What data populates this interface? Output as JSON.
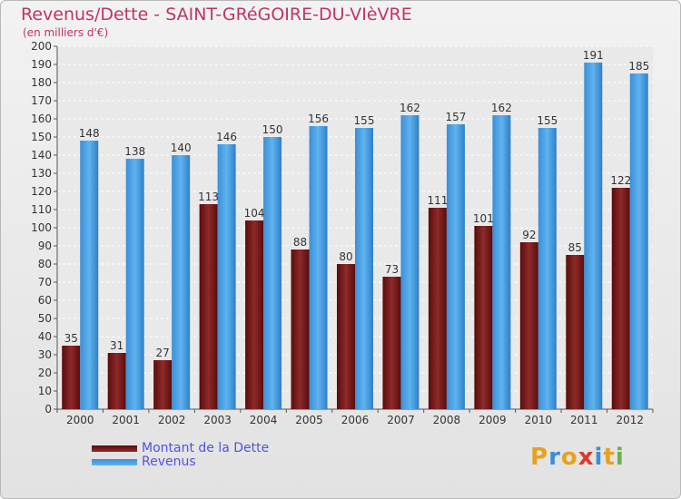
{
  "title": "Revenus/Dette - SAINT-GRéGOIRE-DU-VIèVRE",
  "subtitle": "(en milliers d'€)",
  "logo": {
    "text": "Proxiti",
    "letters": [
      "P",
      "r",
      "o",
      "x",
      "i",
      "t",
      "i"
    ],
    "letter_colors": [
      "#e8a020",
      "#3a8fd8",
      "#e8a020",
      "#d93a2a",
      "#3a8fd8",
      "#e8a020",
      "#6ab04c"
    ]
  },
  "chart_data": {
    "type": "bar",
    "categories": [
      "2000",
      "2001",
      "2002",
      "2003",
      "2004",
      "2005",
      "2006",
      "2007",
      "2008",
      "2009",
      "2010",
      "2011",
      "2012"
    ],
    "series": [
      {
        "name": "Montant de la Dette",
        "color": "#7a1a1a",
        "values": [
          35,
          31,
          27,
          113,
          104,
          88,
          80,
          73,
          111,
          101,
          92,
          85,
          122
        ]
      },
      {
        "name": "Revenus",
        "color": "#4aa3e8",
        "values": [
          148,
          138,
          140,
          146,
          150,
          156,
          155,
          162,
          157,
          162,
          155,
          191,
          185
        ]
      }
    ],
    "ylim": [
      0,
      200
    ],
    "yticks": [
      0,
      10,
      20,
      30,
      40,
      50,
      60,
      70,
      80,
      90,
      100,
      110,
      120,
      130,
      140,
      150,
      160,
      170,
      180,
      190,
      200
    ],
    "grid": true,
    "legend_position": "bottom-left"
  }
}
